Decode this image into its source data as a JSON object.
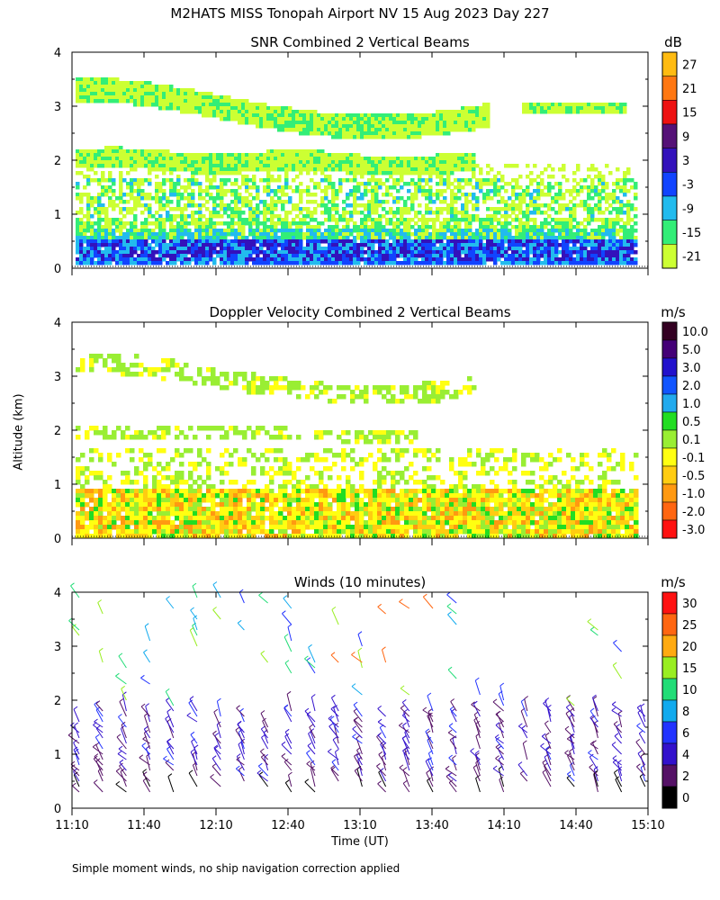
{
  "title": "M2HATS MISS Tonopah Airport NV  15 Aug 2023 Day 227",
  "ylabel": "Altitude (km)",
  "xlabel": "Time (UT)",
  "footnote": "Simple moment winds, no ship navigation correction applied",
  "chart_data": [
    {
      "type": "heatmap",
      "title": "SNR Combined 2 Vertical Beams",
      "units": "dB",
      "ylabel": "Altitude (km)",
      "ylim": [
        0,
        4
      ],
      "yticks": [
        "0",
        "1",
        "2",
        "3",
        "4"
      ],
      "xlim": [
        "11:10",
        "15:10"
      ],
      "colorbar": {
        "labels": [
          "-21",
          "-15",
          "-9",
          "-3",
          "3",
          "9",
          "15",
          "21",
          "27"
        ],
        "colors": [
          "#ccff33",
          "#33ee77",
          "#22bbee",
          "#1144ff",
          "#3311bb",
          "#551177",
          "#ee1111",
          "#ff7711",
          "#ffbb11"
        ]
      }
    },
    {
      "type": "heatmap",
      "title": "Doppler Velocity Combined 2 Vertical Beams",
      "units": "m/s",
      "ylabel": "Altitude (km)",
      "ylim": [
        0,
        4
      ],
      "yticks": [
        "0",
        "1",
        "2",
        "3",
        "4"
      ],
      "xlim": [
        "11:10",
        "15:10"
      ],
      "colorbar": {
        "labels": [
          "10.0",
          "5.0",
          "3.0",
          "2.0",
          "1.0",
          "0.5",
          "0.1",
          "-0.1",
          "-0.5",
          "-1.0",
          "-2.0",
          "-3.0"
        ],
        "colors": [
          "#330022",
          "#440077",
          "#2211cc",
          "#1155ff",
          "#22aaee",
          "#22dd22",
          "#99ee33",
          "#ffff11",
          "#ffcc11",
          "#ff9911",
          "#ff6611",
          "#ff1111"
        ]
      }
    },
    {
      "type": "scatter",
      "title": "Winds (10 minutes)",
      "units": "m/s",
      "ylabel": "Altitude (km)",
      "xlabel": "Time (UT)",
      "ylim": [
        0,
        4
      ],
      "yticks": [
        "0",
        "1",
        "2",
        "3",
        "4"
      ],
      "xticks": [
        "11:10",
        "11:40",
        "12:10",
        "12:40",
        "13:10",
        "13:40",
        "14:10",
        "14:40",
        "15:10"
      ],
      "colorbar": {
        "labels": [
          "0",
          "2",
          "4",
          "6",
          "8",
          "10",
          "15",
          "20",
          "25",
          "30"
        ],
        "colors": [
          "#000000",
          "#551166",
          "#3311cc",
          "#2233ff",
          "#11aaee",
          "#22dd77",
          "#99ee22",
          "#ffaa11",
          "#ff6611",
          "#ff1111"
        ]
      }
    }
  ]
}
